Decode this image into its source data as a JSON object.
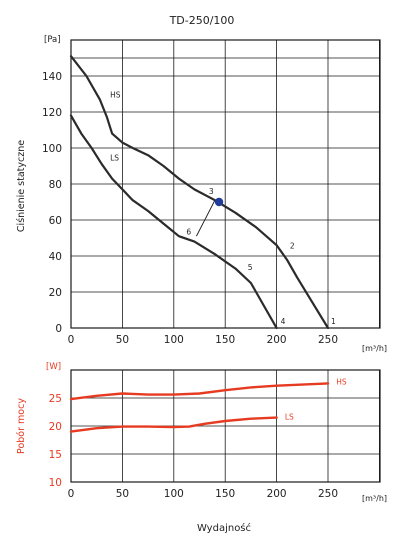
{
  "title": "TD-250/100",
  "xlabel": "Wydajność",
  "colors": {
    "curve": "#2b2b2b",
    "power": "#e63a21",
    "grid": "#1a1a1a",
    "point": "#1f3b9c"
  },
  "chart_data": [
    {
      "type": "line",
      "ylabel": "Ciśnienie statyczne",
      "yunit": "[Pa]",
      "xunit": "[m³/h]",
      "xlim": [
        0,
        250
      ],
      "ylim": [
        0,
        150
      ],
      "xticks": [
        "0",
        "50",
        "100",
        "150",
        "200",
        "250"
      ],
      "yticks": [
        "0",
        "20",
        "40",
        "60",
        "80",
        "100",
        "120",
        "140"
      ],
      "grid": true,
      "series": [
        {
          "name": "HS",
          "x": [
            0,
            15,
            28,
            35,
            40,
            50,
            60,
            75,
            90,
            105,
            120,
            140,
            160,
            180,
            200,
            210,
            220,
            235,
            250
          ],
          "y": [
            151,
            140,
            127,
            117,
            108,
            103,
            100,
            96,
            90,
            83,
            77,
            71,
            64,
            56,
            46,
            38,
            28,
            14,
            0
          ]
        },
        {
          "name": "LS",
          "x": [
            0,
            10,
            20,
            30,
            40,
            50,
            60,
            75,
            90,
            105,
            120,
            140,
            160,
            175,
            190,
            200
          ],
          "y": [
            118,
            108,
            100,
            91,
            83,
            77,
            71,
            65,
            58,
            51,
            48,
            41,
            33,
            25,
            10,
            0
          ]
        }
      ],
      "points": [
        {
          "label": "1",
          "x": 250,
          "y": 0
        },
        {
          "label": "2",
          "x": 210,
          "y": 42
        },
        {
          "label": "3",
          "x": 140,
          "y": 71
        },
        {
          "label": "4",
          "x": 200,
          "y": 0
        },
        {
          "label": "5",
          "x": 168,
          "y": 31
        },
        {
          "label": "6",
          "x": 122,
          "y": 53
        }
      ],
      "operating_point": {
        "x": 144,
        "y": 70
      },
      "pointer_line": {
        "from_x": 140,
        "from_y": 71,
        "to_x": 122,
        "to_y": 51
      }
    },
    {
      "type": "line",
      "ylabel": "Pobór mocy",
      "yunit": "[W]",
      "xunit": "[m³/h]",
      "xlim": [
        0,
        250
      ],
      "ylim": [
        10,
        30
      ],
      "xticks": [
        "0",
        "50",
        "100",
        "150",
        "200",
        "250"
      ],
      "yticks": [
        "10",
        "15",
        "20",
        "25"
      ],
      "grid": true,
      "series": [
        {
          "name": "HS",
          "x": [
            0,
            25,
            50,
            75,
            100,
            125,
            150,
            175,
            200,
            225,
            250
          ],
          "y": [
            24.8,
            25.4,
            25.8,
            25.6,
            25.6,
            25.8,
            26.4,
            26.9,
            27.2,
            27.4,
            27.6
          ]
        },
        {
          "name": "LS",
          "x": [
            0,
            25,
            50,
            75,
            100,
            115,
            130,
            150,
            175,
            200
          ],
          "y": [
            19,
            19.6,
            19.9,
            19.9,
            19.8,
            19.9,
            20.4,
            20.9,
            21.3,
            21.5
          ]
        }
      ]
    }
  ]
}
